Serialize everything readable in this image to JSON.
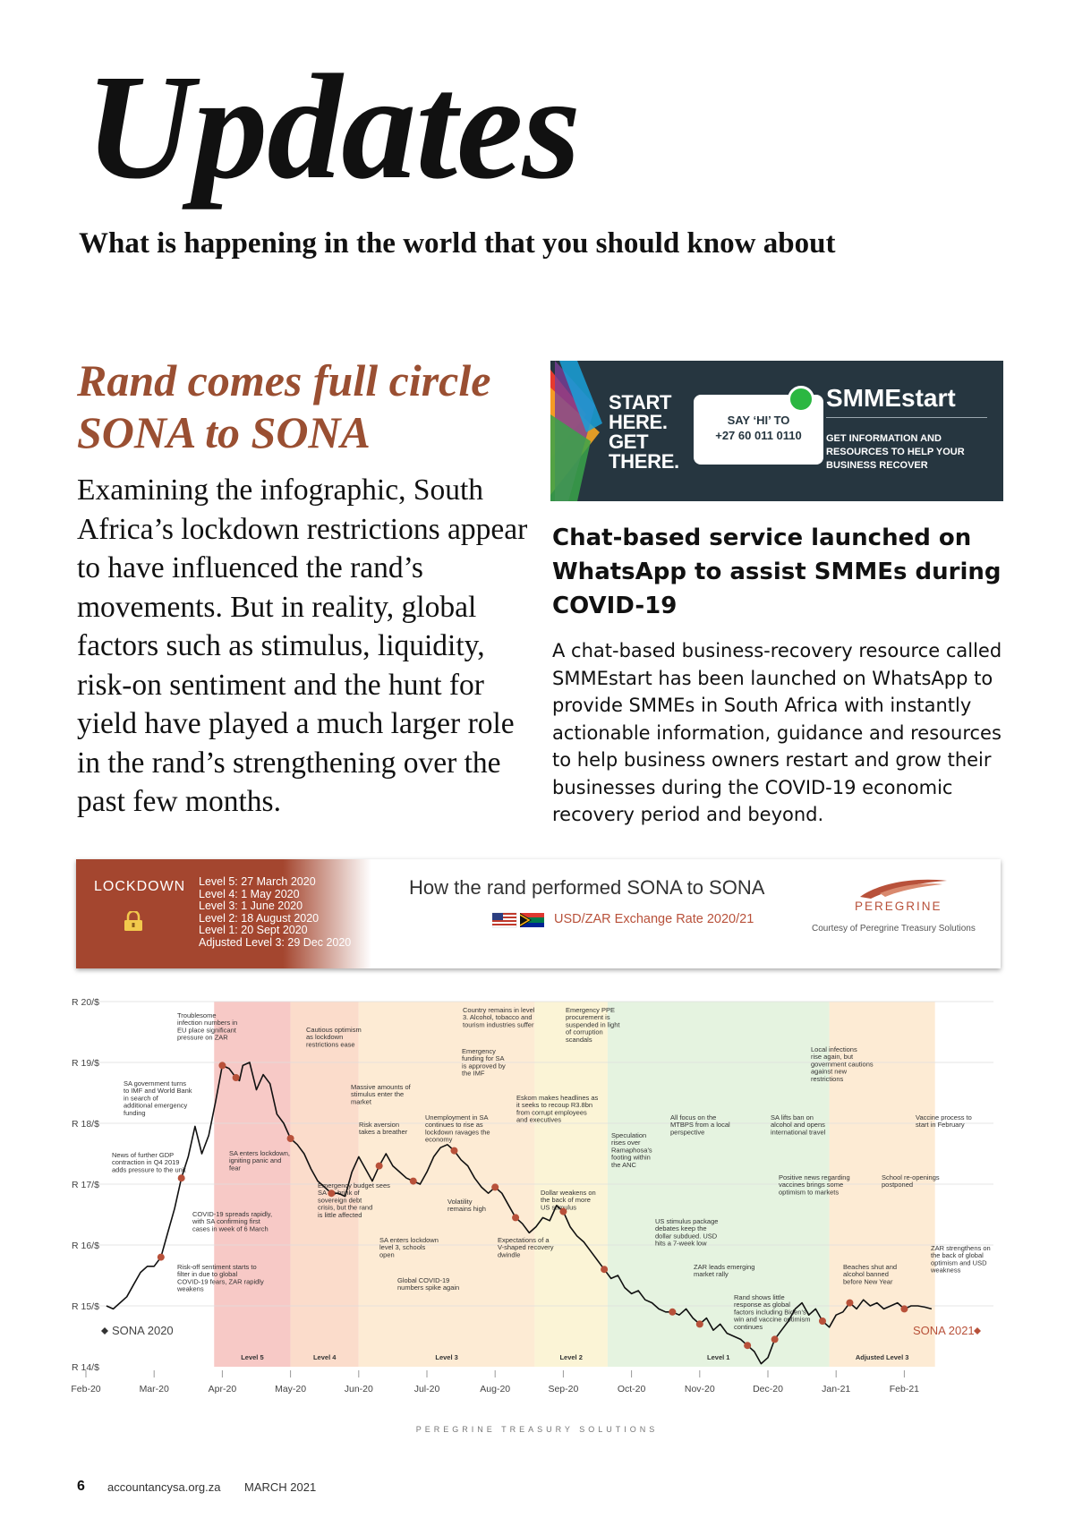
{
  "page": {
    "title": "Updates",
    "subtitle": "What is happening in the world that you should know about"
  },
  "article": {
    "title": "Rand comes full circle SONA to SONA",
    "body": "Examining the infographic, South Africa’s lockdown restrictions appear to have influenced the rand’s movements. But in reality, global factors such as stimulus, liquidity, risk-on sentiment and the hunt for yield have played a much larger role in the rand’s strengthening over the past few months."
  },
  "ad": {
    "start_text": "START\nHERE.\nGET\nTHERE.",
    "bubble_text": "SAY ‘HI’ TO\n+27 60 011 0110",
    "brand": "SMMEstart",
    "sub_text": "GET INFORMATION AND RESOURCES TO HELP YOUR BUSINESS RECOVER"
  },
  "sidebar": {
    "heading": "Chat-based service launched on WhatsApp to assist SMMEs during COVID-19",
    "body": "A chat-based business-recovery resource called SMMEstart has been launched on WhatsApp to provide SMMEs in South Africa with instantly actionable information, guidance and resources to help business owners restart and grow their businesses during the COVID-19 economic recovery period and beyond."
  },
  "infographic": {
    "lockdown_label": "LOCKDOWN",
    "levels": [
      "Level 5: 27 March 2020",
      "Level 4: 1 May 2020",
      "Level 3: 1 June 2020",
      "Level 2: 18 August 2020",
      "Level 1: 20 Sept 2020",
      "Adjusted Level 3: 29 Dec 2020"
    ],
    "title": "How the rand performed SONA to SONA",
    "subtitle": "USD/ZAR Exchange Rate 2020/21",
    "brand": "PEREGRINE",
    "courtesy": "Courtesy of Peregrine Treasury Solutions"
  },
  "chart_data": {
    "type": "line",
    "y_ticks": [
      "R 20/$",
      "R 19/$",
      "R 18/$",
      "R 17/$",
      "R 16/$",
      "R 15/$",
      "R 14/$"
    ],
    "ylim": [
      14,
      20
    ],
    "x_ticks": [
      "Feb-20",
      "Mar-20",
      "Apr-20",
      "May-20",
      "Jun-20",
      "Jul-20",
      "Aug-20",
      "Sep-20",
      "Oct-20",
      "Nov-20",
      "Dec-20",
      "Jan-21",
      "Feb-21"
    ],
    "start_label": "SONA 2020",
    "end_label": "SONA 2021",
    "bands": [
      {
        "label": "Level 5",
        "from": 1.88,
        "to": 3.0,
        "color": "#f7c9c6"
      },
      {
        "label": "Level 4",
        "from": 3.0,
        "to": 4.0,
        "color": "#fbdccb"
      },
      {
        "label": "Level 3",
        "from": 4.0,
        "to": 6.58,
        "color": "#fdebd4"
      },
      {
        "label": "Level 2",
        "from": 6.58,
        "to": 7.65,
        "color": "#fbf4d6"
      },
      {
        "label": "Level 1",
        "from": 7.65,
        "to": 10.9,
        "color": "#e5f3e0"
      },
      {
        "label": "Adjusted Level 3",
        "from": 10.9,
        "to": 12.45,
        "color": "#fdebd4"
      }
    ],
    "series": [
      {
        "x": [
          0.3,
          0.4,
          0.5,
          0.6,
          0.7,
          0.8,
          0.9,
          1.0,
          1.1,
          1.2,
          1.3,
          1.4,
          1.5,
          1.6,
          1.7,
          1.8,
          1.9,
          2.0,
          2.1,
          2.2,
          2.25,
          2.3,
          2.4,
          2.5,
          2.6,
          2.7,
          2.8,
          2.9,
          3.0,
          3.1,
          3.2,
          3.3,
          3.4,
          3.5,
          3.6,
          3.7,
          3.8,
          3.9,
          4.0,
          4.1,
          4.2,
          4.3,
          4.4,
          4.5,
          4.6,
          4.7,
          4.8,
          4.9,
          5.0,
          5.1,
          5.2,
          5.3,
          5.4,
          5.5,
          5.6,
          5.7,
          5.8,
          5.9,
          6.0,
          6.1,
          6.2,
          6.3,
          6.4,
          6.5,
          6.6,
          6.7,
          6.8,
          6.9,
          7.0,
          7.1,
          7.2,
          7.3,
          7.4,
          7.5,
          7.6,
          7.7,
          7.8,
          7.9,
          8.0,
          8.1,
          8.2,
          8.3,
          8.4,
          8.5,
          8.6,
          8.7,
          8.8,
          8.9,
          9.0,
          9.1,
          9.2,
          9.3,
          9.4,
          9.5,
          9.6,
          9.7,
          9.8,
          9.9,
          10.0,
          10.1,
          10.2,
          10.3,
          10.4,
          10.5,
          10.6,
          10.7,
          10.8,
          10.9,
          11.0,
          11.1,
          11.2,
          11.3,
          11.4,
          11.5,
          11.6,
          11.7,
          11.8,
          11.9,
          12.0,
          12.1,
          12.2,
          12.3,
          12.4
        ],
        "y": [
          15.0,
          14.95,
          15.05,
          15.15,
          15.35,
          15.55,
          15.65,
          15.65,
          15.8,
          16.2,
          16.6,
          17.1,
          17.45,
          17.95,
          17.5,
          17.8,
          18.35,
          18.95,
          18.9,
          18.75,
          18.7,
          18.95,
          19.0,
          18.55,
          18.8,
          18.65,
          18.15,
          18.0,
          17.75,
          17.65,
          17.5,
          17.25,
          17.05,
          16.95,
          16.85,
          16.85,
          16.8,
          17.2,
          17.45,
          17.25,
          17.05,
          17.3,
          17.5,
          17.3,
          17.2,
          17.1,
          17.05,
          17.0,
          17.2,
          17.45,
          17.6,
          17.65,
          17.55,
          17.4,
          17.3,
          17.1,
          16.95,
          16.85,
          16.95,
          16.85,
          16.65,
          16.45,
          16.35,
          16.2,
          16.3,
          16.45,
          16.4,
          16.65,
          16.55,
          16.3,
          16.15,
          16.05,
          15.9,
          15.75,
          15.6,
          15.45,
          15.5,
          15.3,
          15.2,
          15.25,
          15.1,
          15.05,
          14.95,
          14.9,
          14.9,
          14.85,
          14.95,
          14.8,
          14.7,
          14.8,
          14.6,
          14.7,
          14.55,
          14.5,
          14.45,
          14.35,
          14.25,
          14.05,
          14.15,
          14.45,
          14.6,
          14.75,
          14.95,
          15.05,
          14.85,
          14.95,
          14.75,
          14.65,
          14.85,
          14.9,
          15.05,
          14.95,
          15.1,
          15.0,
          15.05,
          14.95,
          15.0,
          15.05,
          14.95,
          15.0,
          15.0,
          14.98,
          14.95
        ]
      }
    ],
    "annotations": [
      {
        "text": "Troublesome infection numbers in EU place significant pressure on ZAR"
      },
      {
        "text": "Cautious optimism as lockdown restrictions ease"
      },
      {
        "text": "SA government turns to IMF and World Bank in search of additional emergency funding"
      },
      {
        "text": "Massive amounts of stimulus enter the market"
      },
      {
        "text": "Country remains in level 3. Alcohol, tobacco and tourism industries suffer"
      },
      {
        "text": "Emergency PPE procurement is suspended in light of corruption scandals"
      },
      {
        "text": "Emergency funding for SA is approved by the IMF"
      },
      {
        "text": "Eskom makes headlines as it seeks to recoup R3.8bn from corrupt employees and executives"
      },
      {
        "text": "Local infections rise again, but government cautions against new restrictions"
      },
      {
        "text": "Risk aversion takes a breather"
      },
      {
        "text": "Unemployment in SA continues to rise as lockdown ravages the economy"
      },
      {
        "text": "All focus on the MTBPS from a local perspective"
      },
      {
        "text": "SA lifts ban on alcohol and opens international travel"
      },
      {
        "text": "Vaccine process to start in February"
      },
      {
        "text": "News of further GDP contraction in Q4 2019 adds pressure to the unit"
      },
      {
        "text": "SA enters lockdown, igniting panic and fear"
      },
      {
        "text": "Speculation rises over Ramaphosa's footing within the ANC"
      },
      {
        "text": "Positive news regarding vaccines brings some optimism to markets"
      },
      {
        "text": "School re-openings postponed"
      },
      {
        "text": "Emergency budget sees SA on brink of sovereign debt crisis, but the rand is little affected"
      },
      {
        "text": "Volatility remains high"
      },
      {
        "text": "Dollar weakens on the back of more US stimulus"
      },
      {
        "text": "COVID-19 spreads rapidly, with SA confirming first cases in week of 6 March"
      },
      {
        "text": "US stimulus package debates keep the dollar subdued. USD hits a 7-week low"
      },
      {
        "text": "SA enters lockdown level 3, schools open"
      },
      {
        "text": "Expectations of a V-shaped recovery dwindle"
      },
      {
        "text": "ZAR strengthens on the back of global optimism and USD weakness"
      },
      {
        "text": "Risk-off sentiment starts to filter in due to global COVID-19 fears, ZAR rapidly weakens"
      },
      {
        "text": "Global COVID-19 numbers spike again"
      },
      {
        "text": "ZAR leads emerging market rally"
      },
      {
        "text": "Beaches shut and alcohol banned before New Year"
      },
      {
        "text": "Rand shows little response as global factors including Biden's win and vaccine optimism continues"
      }
    ],
    "line_color": "#111111",
    "marker_color": "#b8513a",
    "grid": true
  },
  "footer": {
    "brand": "PEREGRINE TREASURY SOLUTIONS",
    "page_number": "6",
    "site": "accountancysa.org.za",
    "date": "MARCH 2021"
  }
}
